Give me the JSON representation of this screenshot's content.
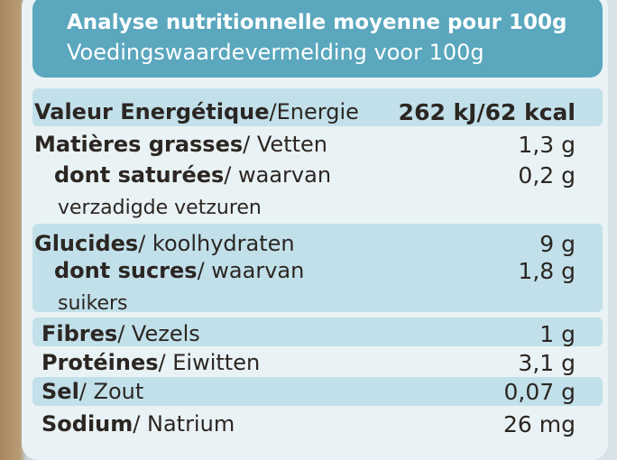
{
  "header": {
    "title": "Analyse nutritionnelle moyenne pour 100g",
    "subtitle": "Voedingswaardevermelding voor 100g"
  },
  "table": {
    "rows": [
      {
        "bold": "Valeur Energétique",
        "rest": "/Energie",
        "value": "262 kJ/62 kcal"
      },
      {
        "bold": "Matières grasses",
        "rest": "/ Vetten",
        "value": "1,3 g"
      },
      {
        "bold": "dont saturées",
        "rest": "/ waarvan",
        "note": "verzadigde vetzuren",
        "value": "0,2 g"
      },
      {
        "bold": "Glucides",
        "rest": "/ koolhydraten",
        "value": "9 g"
      },
      {
        "bold": "dont sucres",
        "rest": "/ waarvan",
        "note": "suikers",
        "value": "1,8 g"
      },
      {
        "bold": "Fibres",
        "rest": "/ Vezels",
        "value": "1 g"
      },
      {
        "bold": "Protéines",
        "rest": "/ Eiwitten",
        "value": "3,1 g"
      },
      {
        "bold": "Sel",
        "rest": "/ Zout",
        "value": "0,07 g"
      },
      {
        "bold": "Sodium",
        "rest": "/ Natrium",
        "value": "26 mg"
      }
    ]
  }
}
